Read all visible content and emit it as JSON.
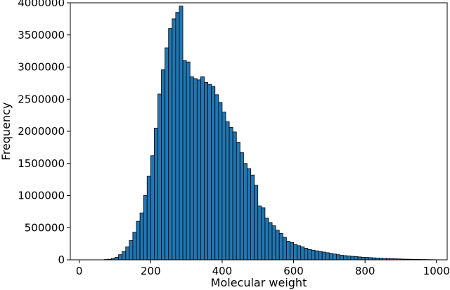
{
  "chart_data": {
    "type": "bar",
    "title": "",
    "xlabel": "Molecular weight",
    "ylabel": "Frequency",
    "xlim": [
      -25,
      1030
    ],
    "ylim": [
      0,
      4000000
    ],
    "bin_width": 10,
    "bin_start": 0,
    "x_ticks": [
      0,
      200,
      400,
      600,
      800,
      1000
    ],
    "x_tick_labels": [
      "0",
      "200",
      "400",
      "600",
      "800",
      "1000"
    ],
    "y_ticks": [
      0,
      500000,
      1000000,
      1500000,
      2000000,
      2500000,
      3000000,
      3500000,
      4000000
    ],
    "y_tick_labels": [
      "0",
      "500000",
      "1000000",
      "1500000",
      "2000000",
      "2500000",
      "3000000",
      "3500000",
      "4000000"
    ],
    "grid": false,
    "bar_color": "#1f77b4",
    "edge_color": "#000000",
    "values": [
      0,
      0,
      0,
      0,
      0,
      0,
      0,
      5000,
      10000,
      20000,
      40000,
      80000,
      130000,
      200000,
      300000,
      430000,
      600000,
      730000,
      1000000,
      1300000,
      1620000,
      2050000,
      2580000,
      2960000,
      3300000,
      3600000,
      3750000,
      3850000,
      3950000,
      3100000,
      3080000,
      2850000,
      2820000,
      2800000,
      2850000,
      2760000,
      2730000,
      2700000,
      2570000,
      2450000,
      2300000,
      2150000,
      2060000,
      1990000,
      1830000,
      1670000,
      1500000,
      1420000,
      1320000,
      1160000,
      840000,
      810000,
      650000,
      580000,
      530000,
      460000,
      410000,
      350000,
      290000,
      270000,
      240000,
      220000,
      200000,
      180000,
      160000,
      150000,
      140000,
      130000,
      120000,
      110000,
      100000,
      90000,
      80000,
      70000,
      65000,
      60000,
      55000,
      50000,
      45000,
      40000,
      37000,
      34000,
      31000,
      28000,
      25000,
      22000,
      20000,
      18000,
      16000,
      14000,
      12000,
      10000,
      9000,
      8000,
      7000,
      6000,
      5000,
      4000,
      3000,
      2000
    ]
  }
}
